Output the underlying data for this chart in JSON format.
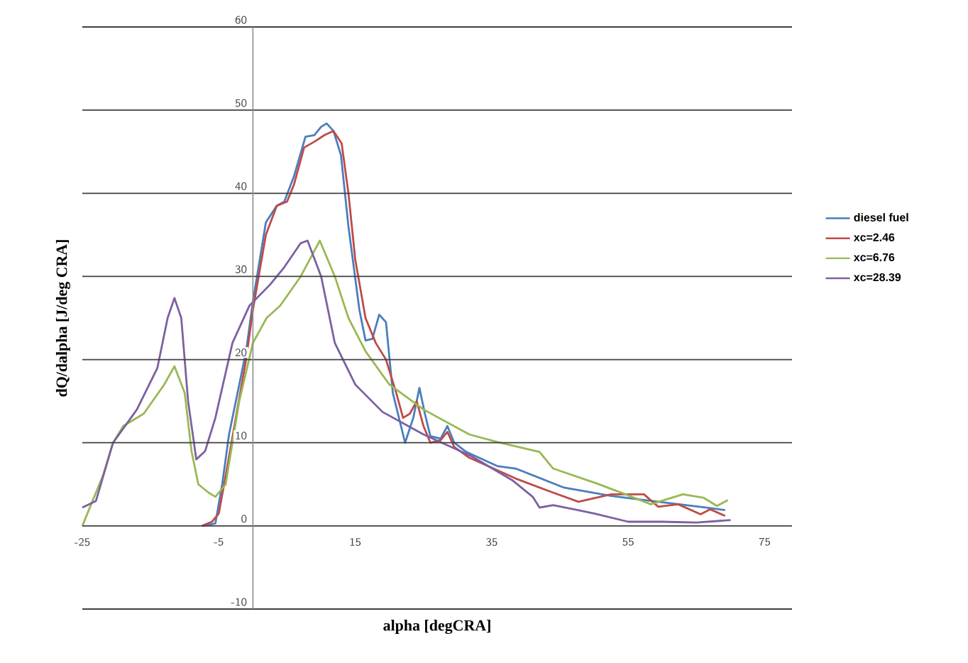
{
  "chart_data": {
    "type": "line",
    "xlabel": "alpha [degCRA]",
    "ylabel": "dQ/dalpha [J/deg CRA]",
    "xlim": [
      -25,
      79
    ],
    "xticks": [
      -25,
      -5,
      15,
      35,
      55,
      75
    ],
    "ylim": [
      -10,
      60
    ],
    "yticks": [
      -10,
      0,
      10,
      20,
      30,
      40,
      50,
      60
    ],
    "grid": "y",
    "legend": "right",
    "marker": "none",
    "line_style": "solid",
    "series": [
      {
        "name": "diesel fuel",
        "color": "#4a7ebb",
        "x": [
          -7.3,
          -5.5,
          -4.5,
          -3.5,
          -2.5,
          -1,
          0,
          1.9,
          3.5,
          4.6,
          6,
          7.7,
          9,
          10,
          10.8,
          11.8,
          12.9,
          14,
          15.6,
          16.5,
          17.5,
          18.5,
          19.5,
          20.5,
          22.3,
          23.5,
          24.4,
          25.2,
          26,
          27.5,
          28.5,
          29.5,
          31.25,
          35.8,
          38.5,
          45.6,
          52.5,
          59.4,
          66.5,
          69.2
        ],
        "values": [
          0,
          0.3,
          5,
          11,
          15,
          21,
          27,
          36.5,
          38.5,
          39,
          42,
          46.8,
          47,
          48,
          48.4,
          47.5,
          44.6,
          36,
          26,
          22.3,
          22.5,
          25.4,
          24.5,
          16,
          10,
          13,
          16.6,
          13.5,
          10.8,
          10.5,
          12,
          10,
          8.9,
          7.2,
          6.9,
          4.6,
          3.6,
          2.9,
          2.2,
          1.9
        ]
      },
      {
        "name": "xc=2.46",
        "color": "#be4b48",
        "x": [
          -7.5,
          -6,
          -5,
          -4,
          -2.5,
          -1,
          0,
          1.9,
          3.5,
          5,
          6,
          7.5,
          9,
          10.5,
          11.8,
          13,
          14,
          15,
          16.5,
          18,
          19.5,
          21,
          22,
          23,
          24,
          25,
          26,
          27.5,
          28.5,
          29.5,
          31.7,
          38.5,
          44,
          47.7,
          52.5,
          57.3,
          59.4,
          62.3,
          65.6,
          67,
          69.2
        ],
        "values": [
          0,
          0.5,
          1.5,
          6,
          13,
          20,
          26,
          35,
          38.5,
          39,
          41,
          45.5,
          46.2,
          47,
          47.5,
          46,
          40,
          32,
          25,
          22,
          20,
          16,
          13,
          13.5,
          15,
          12,
          10,
          10.3,
          11.3,
          9.5,
          8.2,
          5.7,
          4,
          2.9,
          3.8,
          3.8,
          2.3,
          2.6,
          1.4,
          2,
          1.2
        ]
      },
      {
        "name": "xc=6.76",
        "color": "#98b954",
        "x": [
          -25,
          -22,
          -20.5,
          -19,
          -16,
          -13,
          -11.5,
          -10,
          -9,
          -8,
          -6.5,
          -5.5,
          -4,
          -2,
          0,
          2,
          4,
          7,
          9.8,
          12,
          14,
          16.5,
          20,
          25,
          31.7,
          35.8,
          42,
          44,
          50.4,
          54.6,
          58.3,
          63,
          66,
          68,
          69.6
        ],
        "values": [
          0,
          6,
          10,
          12,
          13.5,
          17,
          19.2,
          16,
          9,
          5,
          4,
          3.5,
          5,
          15,
          22,
          25,
          26.5,
          30,
          34.3,
          30,
          25,
          21,
          17,
          14,
          11,
          10.1,
          8.9,
          6.9,
          5.1,
          3.8,
          2.6,
          3.8,
          3.4,
          2.4,
          3.1
        ]
      },
      {
        "name": "xc=28.39",
        "color": "#7d60a0",
        "x": [
          -25,
          -23,
          -20.5,
          -17,
          -14,
          -12.5,
          -11.5,
          -10.5,
          -9.5,
          -8.3,
          -7,
          -5.5,
          -3,
          -0.5,
          2.5,
          4.5,
          7,
          8,
          10,
          12,
          15,
          19,
          25,
          32,
          38,
          41,
          42,
          44,
          47,
          50,
          55,
          60,
          65,
          70
        ],
        "values": [
          2.2,
          3,
          10,
          14,
          19,
          25,
          27.4,
          25,
          15,
          8,
          9,
          13,
          22,
          26.5,
          29,
          31,
          34,
          34.3,
          30,
          22,
          17,
          13.7,
          11,
          8.4,
          5.5,
          3.5,
          2.2,
          2.5,
          2,
          1.5,
          0.5,
          0.5,
          0.4,
          0.7
        ]
      }
    ]
  }
}
